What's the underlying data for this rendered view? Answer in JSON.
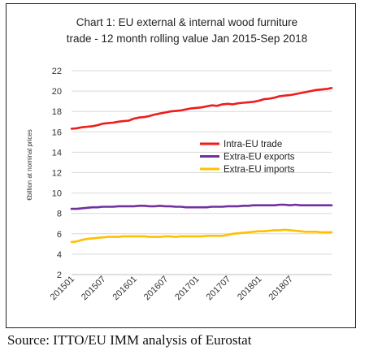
{
  "chart_data": {
    "type": "line",
    "title_lines": [
      "Chart 1: EU external & internal wood furniture",
      "trade - 12 month rolling value Jan 2015-Sep 2018"
    ],
    "ylabel": "€billion at nominal prices",
    "xlabel": "",
    "ylim": [
      2,
      22
    ],
    "yticks": [
      2,
      4,
      6,
      8,
      10,
      12,
      14,
      16,
      18,
      20,
      22
    ],
    "grid": "horizontal",
    "legend": "inside right",
    "x_tick_labels": [
      "201501",
      "201507",
      "201601",
      "201607",
      "201701",
      "201707",
      "201801",
      "201807"
    ],
    "x_tick_every": 6,
    "series": [
      {
        "name": "Intra-EU trade",
        "color": "#ee1c1c",
        "values": [
          16.3,
          16.35,
          16.45,
          16.5,
          16.55,
          16.65,
          16.8,
          16.85,
          16.9,
          17.0,
          17.05,
          17.1,
          17.3,
          17.4,
          17.45,
          17.55,
          17.7,
          17.8,
          17.9,
          18.0,
          18.05,
          18.1,
          18.2,
          18.3,
          18.35,
          18.4,
          18.5,
          18.6,
          18.55,
          18.7,
          18.75,
          18.7,
          18.8,
          18.85,
          18.9,
          18.95,
          19.05,
          19.2,
          19.25,
          19.35,
          19.5,
          19.55,
          19.6,
          19.7,
          19.8,
          19.9,
          20.0,
          20.1,
          20.15,
          20.2,
          20.3
        ]
      },
      {
        "name": "Extra-EU exports",
        "color": "#7030a0",
        "values": [
          8.45,
          8.45,
          8.5,
          8.55,
          8.6,
          8.6,
          8.65,
          8.65,
          8.65,
          8.7,
          8.7,
          8.7,
          8.7,
          8.75,
          8.75,
          8.7,
          8.7,
          8.75,
          8.7,
          8.7,
          8.65,
          8.65,
          8.6,
          8.6,
          8.6,
          8.6,
          8.6,
          8.65,
          8.65,
          8.65,
          8.7,
          8.7,
          8.7,
          8.75,
          8.75,
          8.8,
          8.8,
          8.8,
          8.8,
          8.8,
          8.85,
          8.85,
          8.8,
          8.85,
          8.8,
          8.8,
          8.8,
          8.8,
          8.8,
          8.8,
          8.8
        ]
      },
      {
        "name": "Extra-EU imports",
        "color": "#ffc000",
        "values": [
          5.2,
          5.25,
          5.4,
          5.5,
          5.55,
          5.6,
          5.65,
          5.7,
          5.7,
          5.7,
          5.75,
          5.75,
          5.75,
          5.75,
          5.75,
          5.7,
          5.7,
          5.7,
          5.75,
          5.75,
          5.7,
          5.75,
          5.75,
          5.75,
          5.75,
          5.75,
          5.8,
          5.8,
          5.8,
          5.8,
          5.9,
          6.0,
          6.05,
          6.1,
          6.15,
          6.2,
          6.25,
          6.25,
          6.3,
          6.35,
          6.35,
          6.4,
          6.35,
          6.3,
          6.25,
          6.2,
          6.2,
          6.2,
          6.15,
          6.15,
          6.15
        ]
      }
    ]
  },
  "source": "Source: ITTO/EU IMM analysis of Eurostat"
}
